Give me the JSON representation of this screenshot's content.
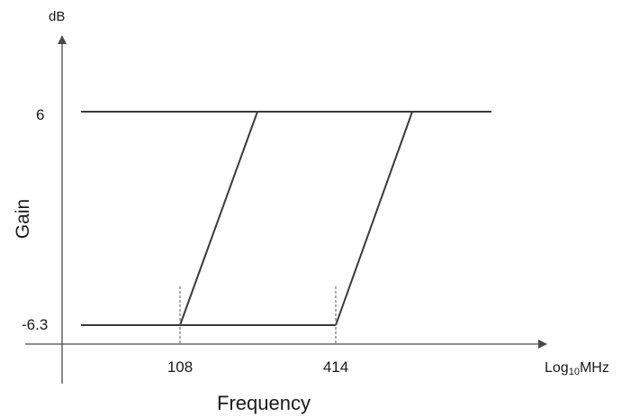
{
  "axis": {
    "y_unit": "dB",
    "y_title": "Gain",
    "x_title": "Frequency",
    "x_unit_base": "Log",
    "x_unit_sub": "10",
    "x_unit_tail": "MHz"
  },
  "ticks": {
    "y_high": "6",
    "y_low": "-6.3",
    "x_first": "108",
    "x_second": "414"
  },
  "colors": {
    "line": "#3a3a3a",
    "axis": "#4a4a4a"
  }
}
